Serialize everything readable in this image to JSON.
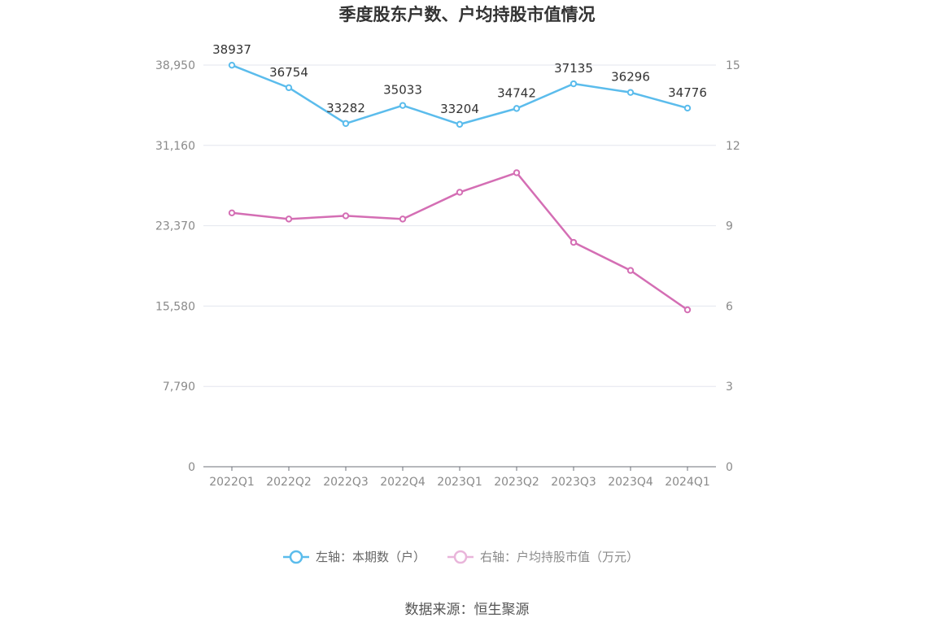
{
  "chart_data": {
    "type": "line",
    "title": "季度股东户数、户均持股市值情况",
    "categories": [
      "2022Q1",
      "2022Q2",
      "2022Q3",
      "2022Q4",
      "2023Q1",
      "2023Q2",
      "2023Q3",
      "2023Q4",
      "2024Q1"
    ],
    "left_axis": {
      "ticks": [
        "0",
        "7,790",
        "15,580",
        "23,370",
        "31,160",
        "38,950"
      ],
      "range": [
        0,
        38950
      ]
    },
    "right_axis": {
      "ticks": [
        "0",
        "3",
        "6",
        "9",
        "12",
        "15"
      ],
      "range": [
        0,
        15
      ]
    },
    "series": [
      {
        "name": "左轴：本期数（户）",
        "axis": "left",
        "color": "#5bbcec",
        "values": [
          38937,
          36754,
          33282,
          35033,
          33204,
          34742,
          37135,
          36296,
          34776
        ],
        "labels": [
          "38937",
          "36754",
          "33282",
          "35033",
          "33204",
          "34742",
          "37135",
          "36296",
          "34776"
        ]
      },
      {
        "name": "右轴：户均持股市值（万元）",
        "axis": "right",
        "color": "#d46eb4",
        "values": [
          9.48,
          9.25,
          9.37,
          9.25,
          10.25,
          10.98,
          8.38,
          7.33,
          5.86
        ]
      }
    ],
    "grid": true,
    "legend": "bottom-center",
    "source": "数据来源：恒生聚源"
  }
}
